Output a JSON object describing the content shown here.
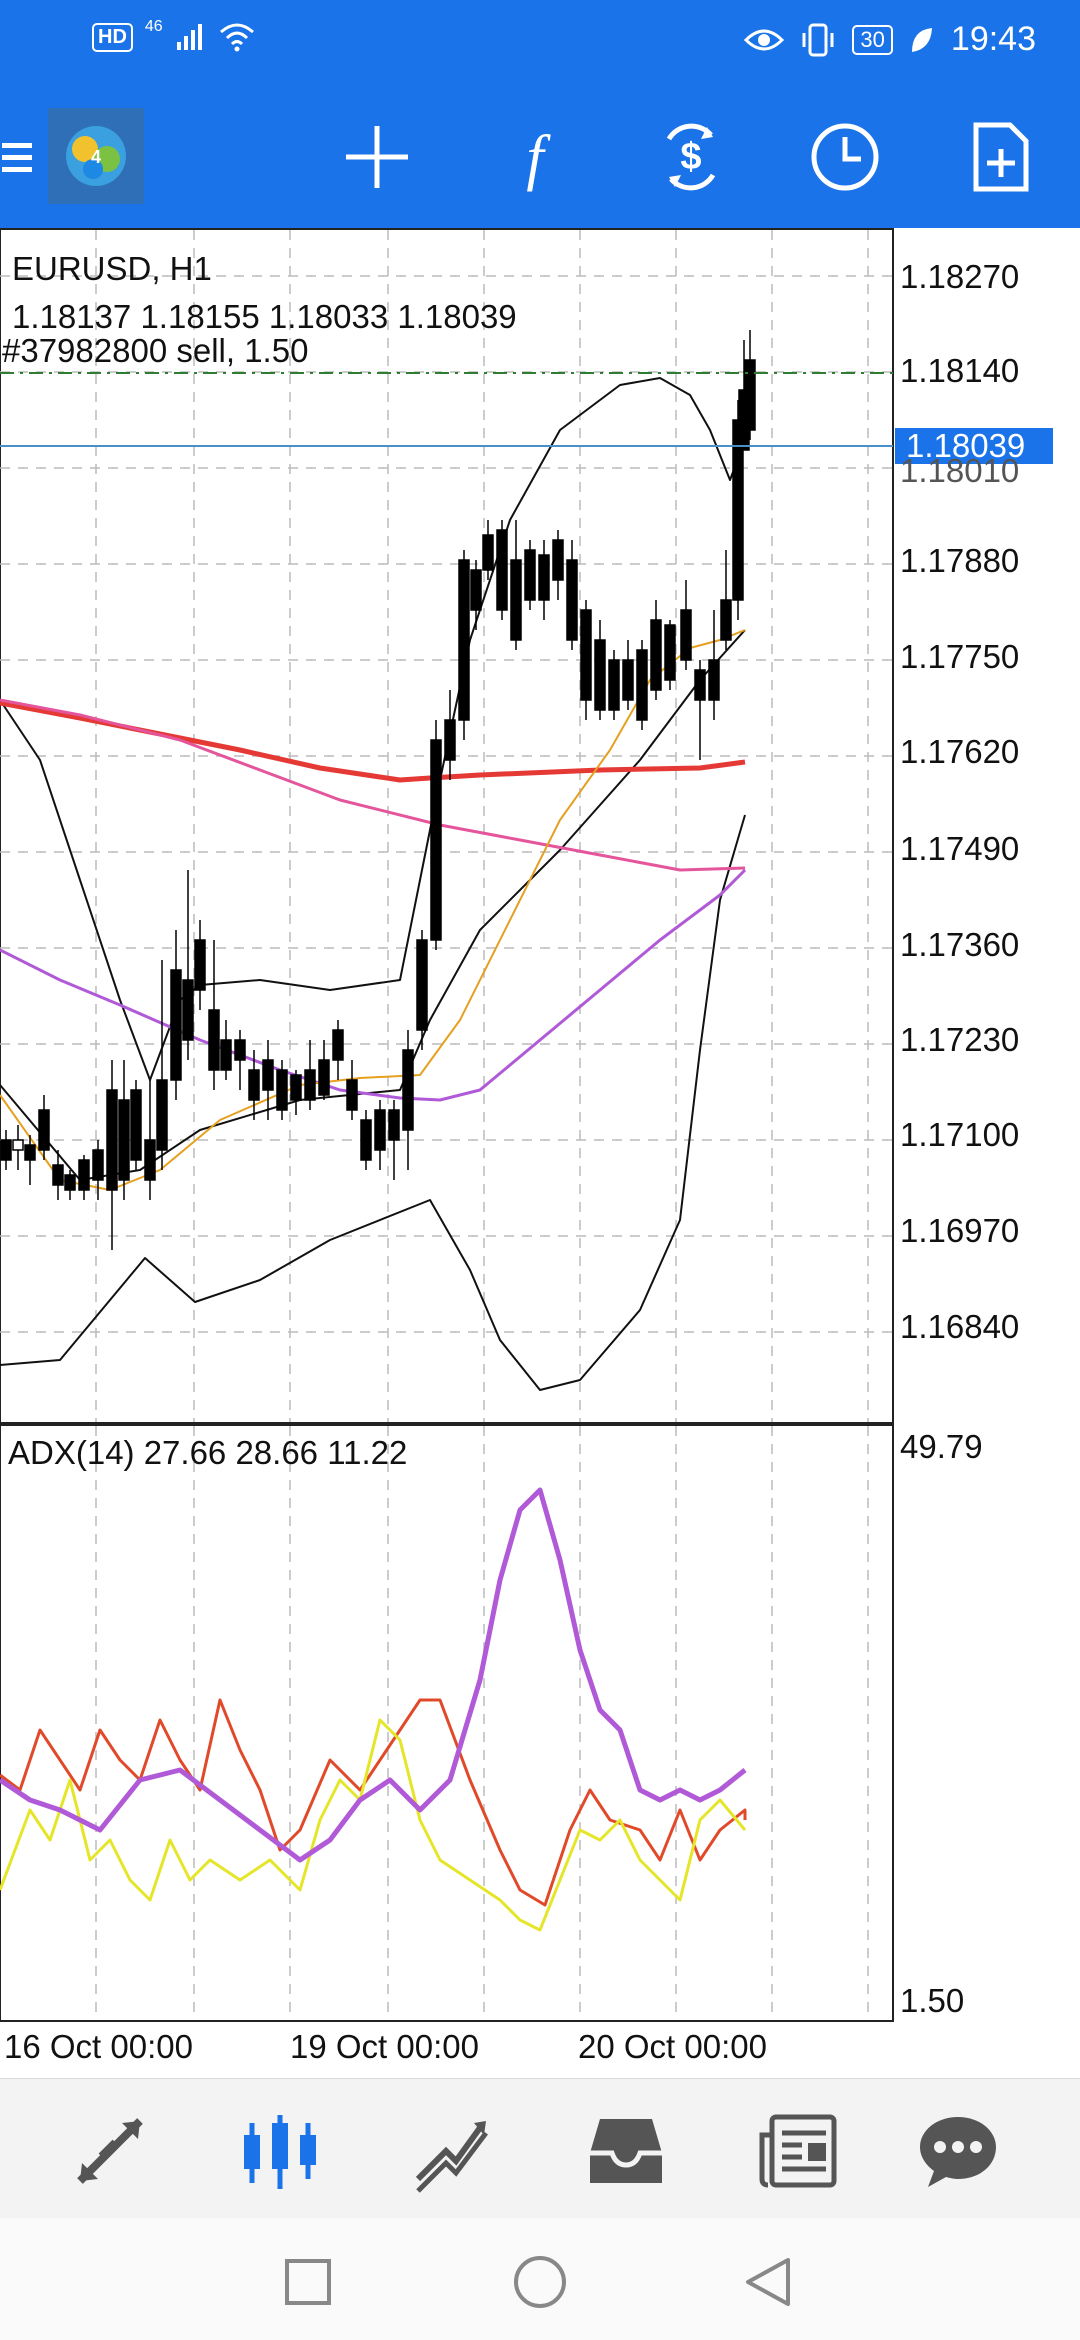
{
  "status_bar": {
    "network": "HD",
    "signal": "46",
    "battery": "30",
    "time": "19:43"
  },
  "chart": {
    "symbol_timeframe": "EURUSD, H1",
    "ohlc": "1.18137 1.18155 1.18033 1.18039",
    "order": "#37982800 sell, 1.50",
    "current_price": "1.18039",
    "price_labels": [
      "1.18270",
      "1.18140",
      "1.18010",
      "1.17880",
      "1.17750",
      "1.17620",
      "1.17490",
      "1.17360",
      "1.17230",
      "1.17100",
      "1.16970",
      "1.16840"
    ],
    "indicator": "ADX(14) 27.66 28.66 11.22",
    "indicator_max": "49.79",
    "indicator_min": "1.50",
    "dates": [
      "16 Oct 00:00",
      "19 Oct 00:00",
      "20 Oct 00:00"
    ],
    "colors": {
      "bid_line": "#4a90c8",
      "order_line": "#2e7d32",
      "ma_slow": "#e53935",
      "ma_mid": "#e5559b",
      "ma_fast": "#e6a020",
      "ma_purple": "#b05ad8",
      "adx": "#b05ad8",
      "plus_di": "#e04a2a",
      "minus_di": "#e5e52a",
      "candle_up": "#ffffff",
      "candle_down": "#000000"
    }
  },
  "icons": {
    "menu": "hamburger-icon",
    "app": "metatrader-logo",
    "crosshair": "crosshair-icon",
    "indicators": "function-icon",
    "symbols": "currency-exchange-icon",
    "timeframe": "clock-icon",
    "new_order": "new-order-icon"
  },
  "bottom_nav": [
    "quotes-icon",
    "chart-icon",
    "trade-icon",
    "history-icon",
    "news-icon",
    "messages-icon"
  ]
}
